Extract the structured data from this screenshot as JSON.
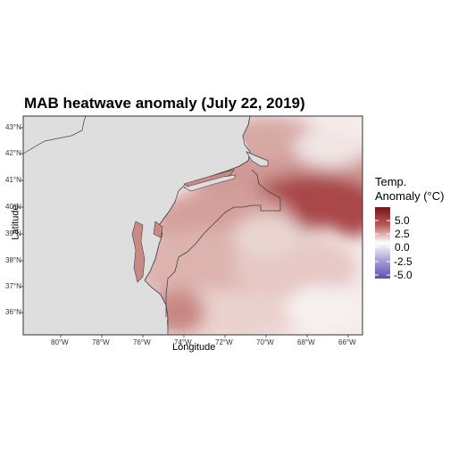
{
  "title": "MAB heatwave anomaly (July 22, 2019)",
  "xlabel": "Longitude",
  "ylabel": "Latitude",
  "x_ticks": [
    "80°W",
    "78°W",
    "76°W",
    "74°W",
    "72°W",
    "70°W",
    "68°W",
    "66°W"
  ],
  "y_ticks": [
    "43°N",
    "42°N",
    "41°N",
    "40°N",
    "39°N",
    "38°N",
    "37°N",
    "36°N"
  ],
  "legend": {
    "title_line1": "Temp.",
    "title_line2": "Anomaly (°C)",
    "labels": [
      "5.0",
      "2.5",
      "0.0",
      "-2.5",
      "-5.0"
    ],
    "high_color": "#7a1315",
    "mid_color": "#ffffff",
    "low_color": "#5b4fb0"
  },
  "colors": {
    "land": "#dedede",
    "coast": "#444444",
    "panel_border": "#333333",
    "warm_strong": "#a8393a",
    "warm_mid": "#cc8480",
    "warm_light": "#ecd2cf",
    "neutral": "#f6f2f2"
  },
  "chart_data": {
    "type": "heatmap",
    "title": "MAB heatwave anomaly (July 22, 2019)",
    "xlabel": "Longitude",
    "ylabel": "Latitude",
    "xlim": [
      -81.5,
      -65.2
    ],
    "ylim": [
      35.2,
      43.4
    ],
    "legend_title": "Temp. Anomaly (°C)",
    "legend_ticks": [
      5.0,
      2.5,
      0.0,
      -2.5,
      -5.0
    ],
    "value_range": [
      -5.0,
      5.0
    ],
    "legend_position": "right"
  }
}
